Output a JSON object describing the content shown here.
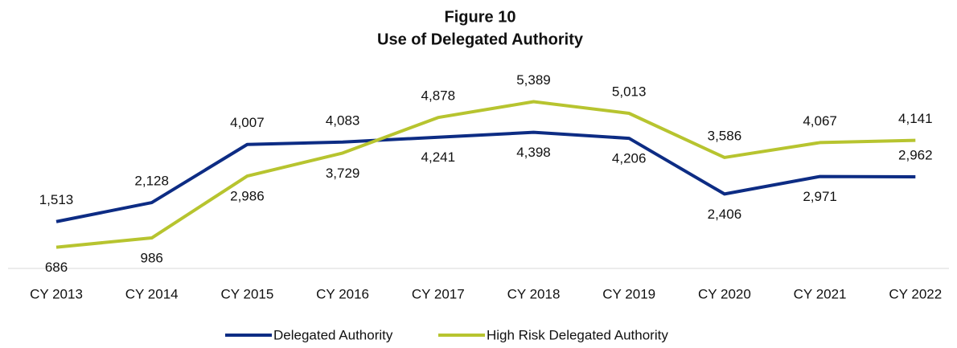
{
  "chart_data": {
    "type": "line",
    "title": "Figure 10",
    "subtitle": "Use of Delegated Authority",
    "categories": [
      "CY 2013",
      "CY 2014",
      "CY 2015",
      "CY 2016",
      "CY 2017",
      "CY 2018",
      "CY 2019",
      "CY 2020",
      "CY 2021",
      "CY 2022"
    ],
    "series": [
      {
        "name": "Delegated Authority",
        "color": "#0d2c84",
        "values": [
          1513,
          2128,
          4007,
          4083,
          4241,
          4398,
          4206,
          2406,
          2971,
          2962
        ],
        "value_labels": [
          "1,513",
          "2,128",
          "4,007",
          "4,083",
          "4,241",
          "4,398",
          "4,206",
          "2,406",
          "2,971",
          "2,962"
        ]
      },
      {
        "name": "High Risk Delegated Authority",
        "color": "#b7c42f",
        "values": [
          686,
          986,
          2986,
          3729,
          4878,
          5389,
          5013,
          3586,
          4067,
          4141
        ],
        "value_labels": [
          "686",
          "986",
          "2,986",
          "3,729",
          "4,878",
          "5,389",
          "5,013",
          "3,586",
          "4,067",
          "4,141"
        ]
      }
    ],
    "ylim": [
      0,
      6000
    ],
    "legend": "bottom"
  }
}
